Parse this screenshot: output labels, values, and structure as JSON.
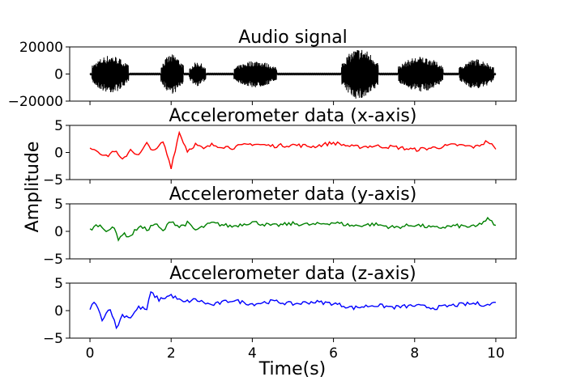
{
  "chart_data": {
    "type": "line",
    "ylabel": "Amplitude",
    "xlabel": "Time(s)",
    "xlim": [
      -0.5,
      10.5
    ],
    "xticks": [
      0,
      2,
      4,
      6,
      8,
      10
    ],
    "xtick_labels": [
      "0",
      "2",
      "4",
      "6",
      "8",
      "10"
    ],
    "panels": [
      {
        "title": "Audio signal",
        "color": "#000000",
        "ylim": [
          -20000,
          20000
        ],
        "yticks": [
          20000,
          0,
          -20000
        ],
        "ytick_labels": [
          "20000",
          "0",
          "−20000"
        ],
        "bursts": [
          {
            "start": 0.05,
            "end": 0.95,
            "amp": 14000
          },
          {
            "start": 1.75,
            "end": 2.3,
            "amp": 14500
          },
          {
            "start": 2.45,
            "end": 2.85,
            "amp": 9000
          },
          {
            "start": 3.55,
            "end": 4.6,
            "amp": 10000
          },
          {
            "start": 6.2,
            "end": 7.1,
            "amp": 19000
          },
          {
            "start": 7.6,
            "end": 8.7,
            "amp": 13000
          },
          {
            "start": 9.1,
            "end": 9.95,
            "amp": 11000
          }
        ]
      },
      {
        "title": "Accelerometer data (x-axis)",
        "color": "#ff0000",
        "ylim": [
          -5,
          5
        ],
        "yticks": [
          5,
          0,
          -5
        ],
        "ytick_labels": [
          "5",
          "0",
          "−5"
        ],
        "x": [
          0,
          0.2,
          0.4,
          0.6,
          0.8,
          1.0,
          1.2,
          1.4,
          1.6,
          1.8,
          2.0,
          2.2,
          2.4,
          2.6,
          2.8,
          3.0,
          3.5,
          4.0,
          4.5,
          5.0,
          5.5,
          6.0,
          6.5,
          7.0,
          7.5,
          8.0,
          8.5,
          9.0,
          9.5,
          9.8,
          10.0
        ],
        "y": [
          1.0,
          0.3,
          -0.8,
          0.4,
          -1.5,
          0.6,
          -0.6,
          1.6,
          0.2,
          2.0,
          -2.7,
          3.7,
          0.3,
          1.5,
          0.6,
          1.4,
          0.9,
          1.6,
          1.2,
          1.4,
          1.1,
          1.8,
          1.0,
          1.2,
          1.0,
          0.5,
          0.9,
          1.4,
          1.0,
          2.1,
          0.6
        ]
      },
      {
        "title": "Accelerometer data (y-axis)",
        "color": "#008000",
        "ylim": [
          -5,
          5
        ],
        "yticks": [
          5,
          0,
          -5
        ],
        "ytick_labels": [
          "5",
          "0",
          "−5"
        ],
        "x": [
          0,
          0.2,
          0.4,
          0.6,
          0.7,
          0.8,
          1.0,
          1.2,
          1.4,
          1.6,
          1.8,
          2.0,
          2.2,
          2.4,
          2.6,
          3.0,
          3.5,
          4.0,
          4.5,
          5.0,
          5.5,
          6.0,
          6.5,
          7.0,
          7.5,
          8.0,
          8.5,
          9.0,
          9.5,
          9.8,
          10.0
        ],
        "y": [
          0.3,
          1.2,
          0.3,
          0.5,
          -1.3,
          -0.5,
          -0.9,
          0.9,
          0.3,
          1.4,
          0.0,
          2.0,
          0.8,
          1.5,
          0.2,
          1.5,
          0.9,
          1.7,
          1.0,
          1.4,
          1.2,
          1.6,
          1.0,
          1.3,
          0.7,
          1.2,
          0.6,
          1.0,
          0.8,
          2.2,
          1.1
        ]
      },
      {
        "title": "Accelerometer data (z-axis)",
        "color": "#0000ff",
        "ylim": [
          -5,
          5
        ],
        "yticks": [
          5,
          0,
          -5
        ],
        "ytick_labels": [
          "5",
          "0",
          "−5"
        ],
        "x": [
          0,
          0.1,
          0.3,
          0.5,
          0.65,
          0.8,
          1.0,
          1.2,
          1.4,
          1.5,
          1.7,
          2.0,
          2.3,
          2.6,
          3.0,
          3.5,
          4.0,
          4.5,
          5.0,
          5.5,
          6.0,
          6.5,
          7.0,
          7.5,
          8.0,
          8.5,
          9.0,
          9.5,
          9.8,
          10.0
        ],
        "y": [
          0.0,
          1.8,
          -1.5,
          0.5,
          -3.2,
          -0.8,
          -1.2,
          0.6,
          0.2,
          3.3,
          2.0,
          2.8,
          1.5,
          2.0,
          1.0,
          1.9,
          1.2,
          1.7,
          1.2,
          1.6,
          1.3,
          0.5,
          1.0,
          0.6,
          0.9,
          0.5,
          1.0,
          1.3,
          1.0,
          1.5
        ]
      }
    ]
  }
}
